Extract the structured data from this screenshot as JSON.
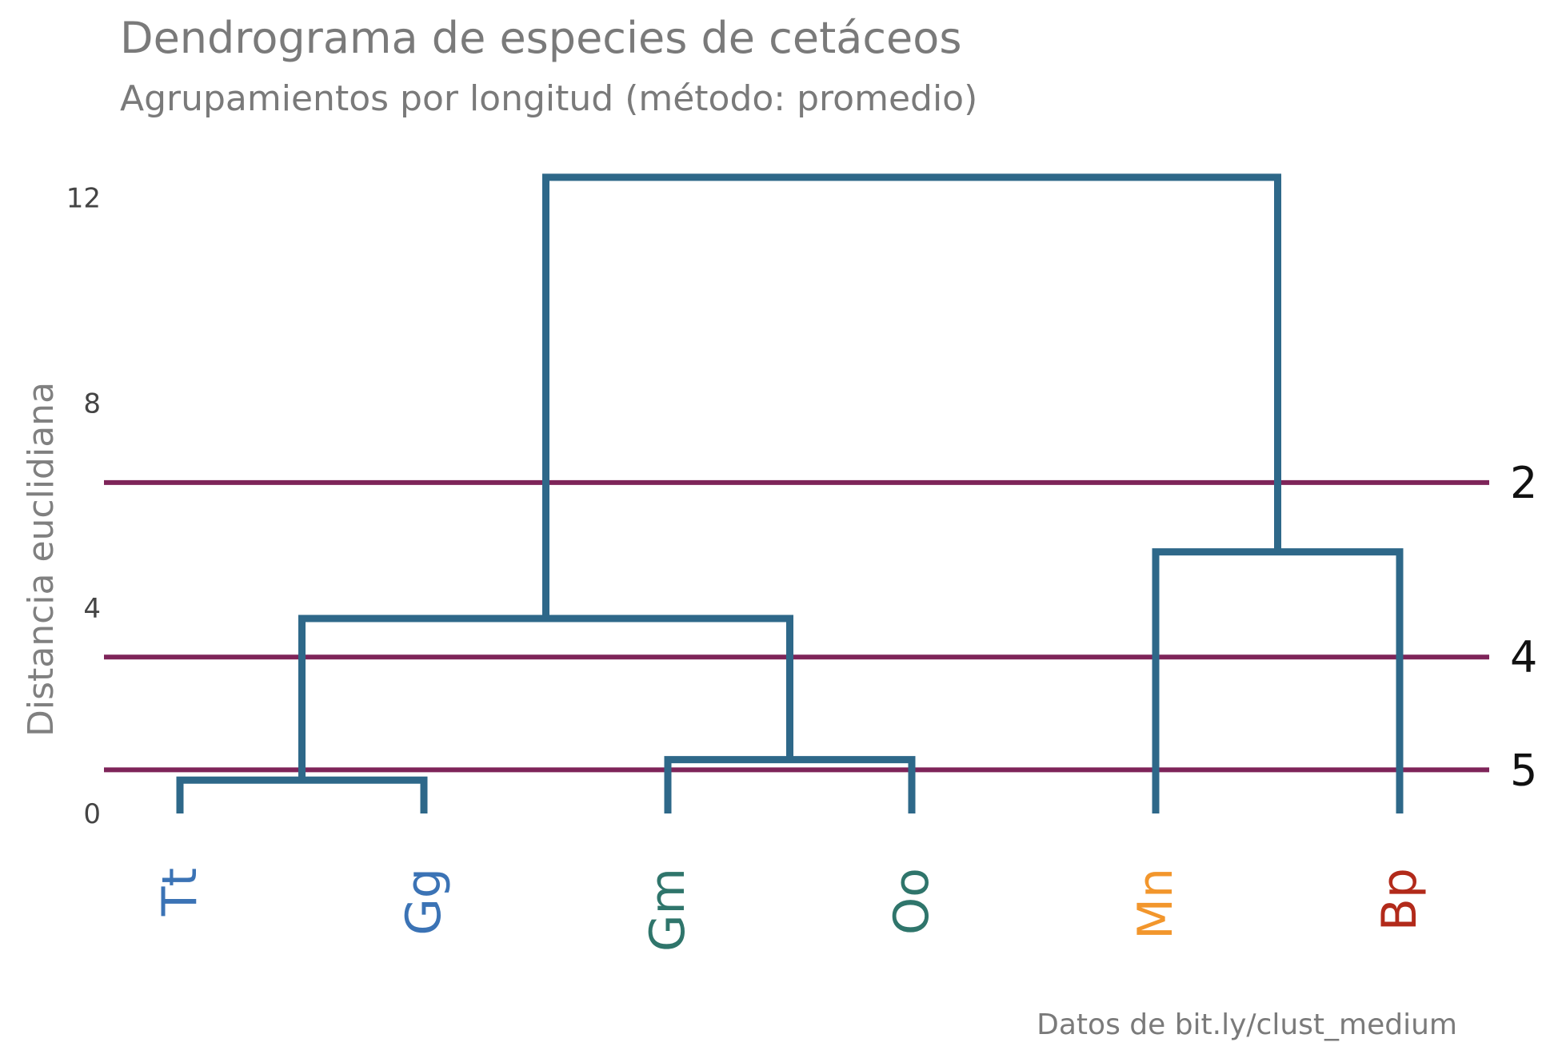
{
  "chart_data": {
    "type": "dendrogram",
    "title": "Dendrograma de especies de cetáceos",
    "subtitle": "Agrupamientos por longitud (método: promedio)",
    "ylabel": "Distancia euclidiana",
    "caption": "Datos de bit.ly/clust_medium",
    "ylim": [
      0,
      12.5
    ],
    "yticks": [
      0,
      4,
      8,
      12
    ],
    "leaves": [
      {
        "label": "Tt",
        "color": "#3b73b5"
      },
      {
        "label": "Gg",
        "color": "#3b73b5"
      },
      {
        "label": "Gm",
        "color": "#2f756b"
      },
      {
        "label": "Oo",
        "color": "#2f756b"
      },
      {
        "label": "Mn",
        "color": "#f2962c"
      },
      {
        "label": "Bp",
        "color": "#b22a1a"
      }
    ],
    "merges": [
      {
        "left": "Tt",
        "right": "Gg",
        "height": 0.65
      },
      {
        "left": "Gm",
        "right": "Oo",
        "height": 1.05
      },
      {
        "left": "Tt+Gg",
        "right": "Gm+Oo",
        "height": 3.8
      },
      {
        "left": "Mn",
        "right": "Bp",
        "height": 5.1
      },
      {
        "left": "Tt+Gg+Gm+Oo",
        "right": "Mn+Bp",
        "height": 12.4
      }
    ],
    "cuts": [
      {
        "height": 6.45,
        "label": "2"
      },
      {
        "height": 3.05,
        "label": "4"
      },
      {
        "height": 0.85,
        "label": "5"
      }
    ],
    "colors": {
      "branch": "#2e6889",
      "cut": "#7e2459"
    }
  }
}
